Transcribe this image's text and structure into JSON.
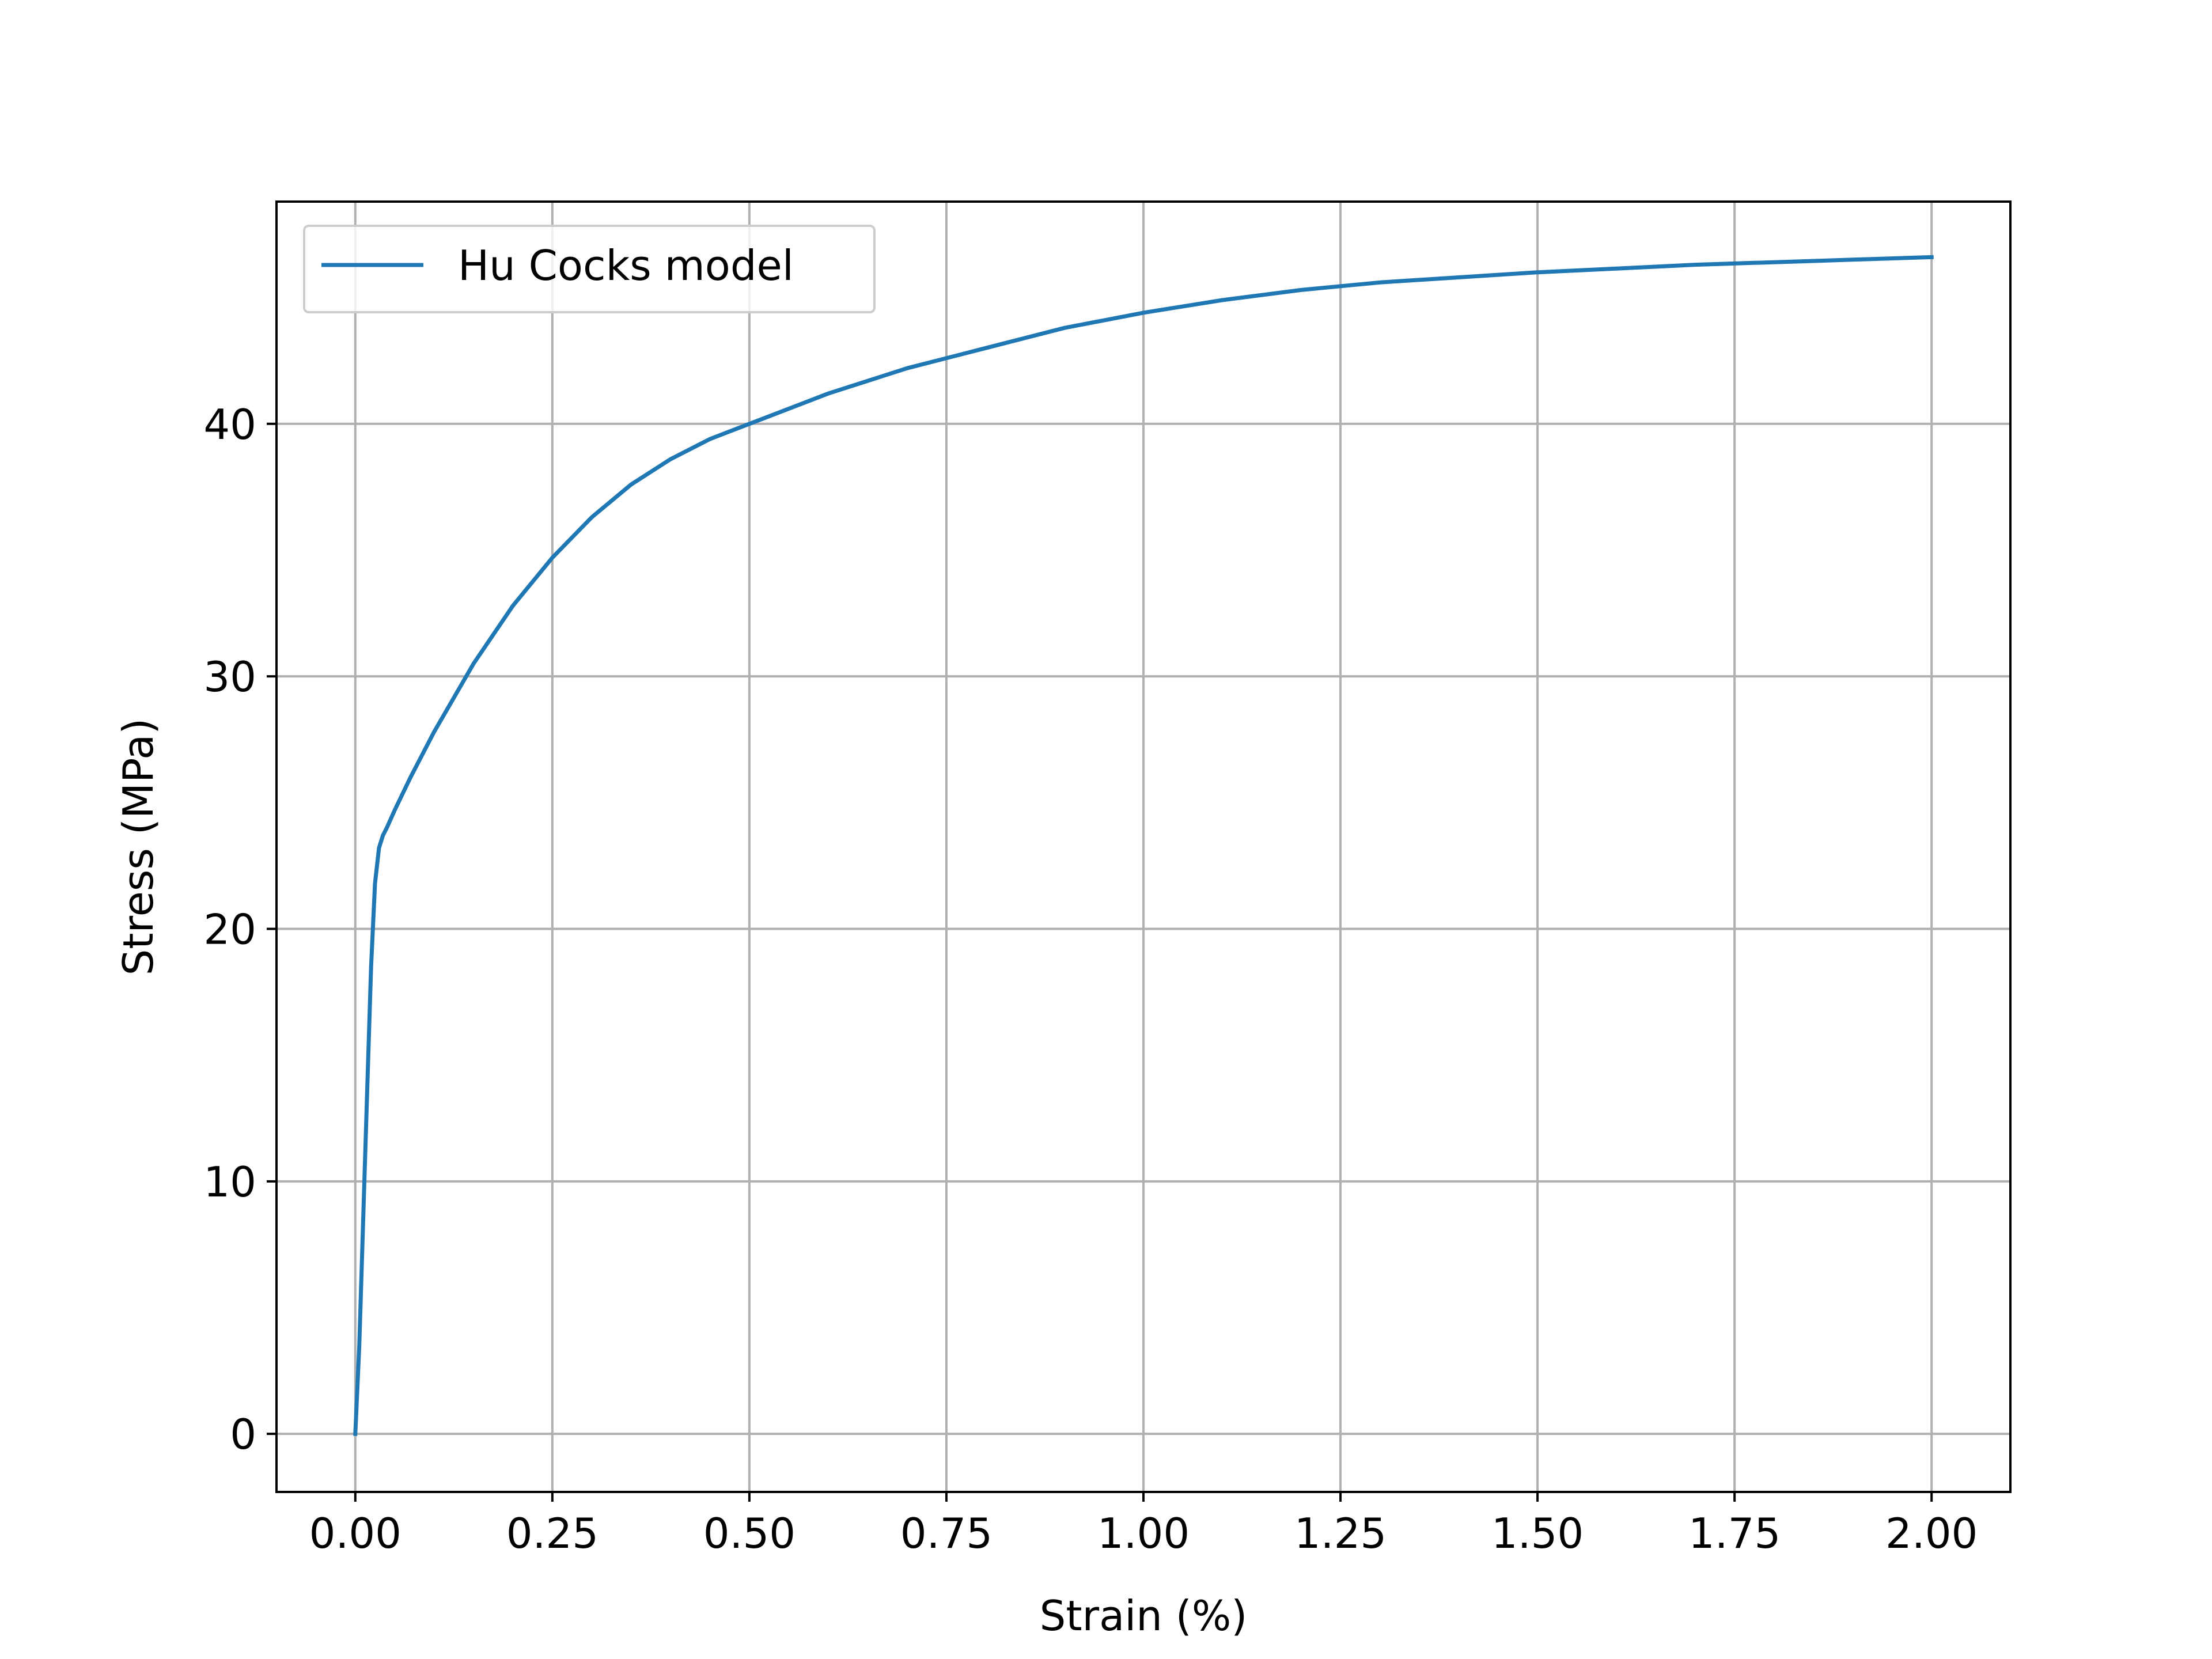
{
  "chart_data": {
    "type": "line",
    "title": "",
    "xlabel": "Strain (%)",
    "ylabel": "Stress (MPa)",
    "xlim": [
      -0.1,
      2.1
    ],
    "ylim": [
      -2.3,
      48.8
    ],
    "grid": true,
    "legend_position": "upper-left",
    "xticks": [
      0.0,
      0.25,
      0.5,
      0.75,
      1.0,
      1.25,
      1.5,
      1.75,
      2.0
    ],
    "xtick_labels": [
      "0.00",
      "0.25",
      "0.50",
      "0.75",
      "1.00",
      "1.25",
      "1.50",
      "1.75",
      "2.00"
    ],
    "yticks": [
      0,
      10,
      20,
      30,
      40
    ],
    "ytick_labels": [
      "0",
      "10",
      "20",
      "30",
      "40"
    ],
    "series": [
      {
        "name": "Hu Cocks model",
        "color": "#1f77b4",
        "x": [
          0.0,
          0.005,
          0.01,
          0.015,
          0.02,
          0.025,
          0.03,
          0.035,
          0.04,
          0.05,
          0.07,
          0.1,
          0.15,
          0.2,
          0.25,
          0.3,
          0.35,
          0.4,
          0.45,
          0.5,
          0.6,
          0.7,
          0.8,
          0.9,
          1.0,
          1.1,
          1.2,
          1.3,
          1.4,
          1.5,
          1.6,
          1.7,
          1.8,
          1.9,
          2.0
        ],
        "y": [
          0.0,
          3.5,
          8.5,
          13.5,
          18.5,
          21.8,
          23.2,
          23.7,
          24.0,
          24.7,
          26.0,
          27.8,
          30.5,
          32.8,
          34.7,
          36.3,
          37.6,
          38.6,
          39.4,
          40.0,
          41.2,
          42.2,
          43.0,
          43.8,
          44.4,
          44.9,
          45.3,
          45.6,
          45.8,
          46.0,
          46.15,
          46.3,
          46.4,
          46.5,
          46.6
        ]
      }
    ]
  }
}
